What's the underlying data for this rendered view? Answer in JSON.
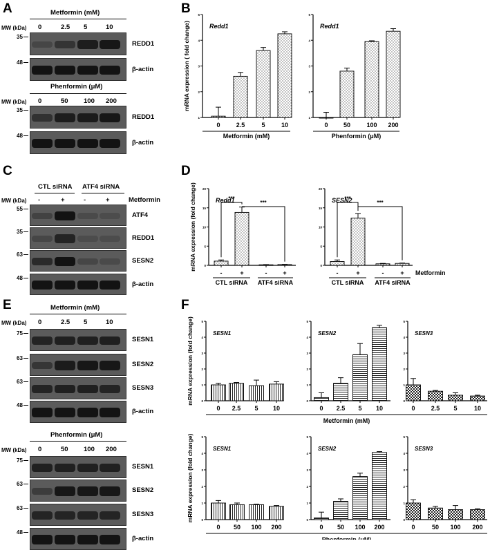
{
  "panel_labels": {
    "A": "A",
    "B": "B",
    "C": "C",
    "D": "D",
    "E": "E",
    "F": "F"
  },
  "blots": {
    "A1": {
      "header": "Metformin (mM)",
      "mw_label": "MW (kDa)",
      "lanes": [
        "0",
        "2.5",
        "5",
        "10"
      ],
      "rows": [
        {
          "mw": "35",
          "label": "REDD1",
          "levels": [
            0.15,
            0.45,
            0.8,
            0.9
          ]
        },
        {
          "mw": "48",
          "label": "β-actin",
          "levels": [
            0.95,
            0.95,
            0.95,
            0.95
          ]
        }
      ]
    },
    "A2": {
      "header": "Phenformin (μM)",
      "mw_label": "MW (kDa)",
      "lanes": [
        "0",
        "50",
        "100",
        "200"
      ],
      "rows": [
        {
          "mw": "35",
          "label": "REDD1",
          "levels": [
            0.5,
            0.8,
            0.85,
            0.9
          ]
        },
        {
          "mw": "48",
          "label": "β-actin",
          "levels": [
            0.95,
            0.95,
            0.95,
            0.95
          ]
        }
      ]
    },
    "C": {
      "headers": [
        "CTL siRNA",
        "ATF4 siRNA"
      ],
      "mw_label": "MW (kDa)",
      "lanes": [
        "-",
        "+",
        "-",
        "+"
      ],
      "treatment": "Metformin",
      "rows": [
        {
          "mw": "55",
          "label": "ATF4",
          "levels": [
            0.2,
            0.95,
            0.1,
            0.05
          ]
        },
        {
          "mw": "35",
          "label": "REDD1",
          "levels": [
            0.15,
            0.7,
            0.05,
            0.05
          ]
        },
        {
          "mw": "63",
          "label": "SESN2",
          "levels": [
            0.6,
            0.95,
            0.15,
            0.1
          ]
        },
        {
          "mw": "48",
          "label": "β-actin",
          "levels": [
            0.95,
            0.95,
            0.95,
            0.95
          ]
        }
      ]
    },
    "E1": {
      "header": "Metformin (mM)",
      "mw_label": "MW (kDa)",
      "lanes": [
        "0",
        "2.5",
        "5",
        "10"
      ],
      "rows": [
        {
          "mw": "75",
          "label": "SESN1",
          "levels": [
            0.7,
            0.75,
            0.75,
            0.75
          ]
        },
        {
          "mw": "63",
          "label": "SESN2",
          "levels": [
            0.4,
            0.85,
            0.9,
            0.9
          ]
        },
        {
          "mw": "63",
          "label": "SESN3",
          "levels": [
            0.7,
            0.75,
            0.75,
            0.7
          ]
        },
        {
          "mw": "48",
          "label": "β-actin",
          "levels": [
            0.95,
            0.95,
            0.95,
            0.95
          ]
        }
      ]
    },
    "E2": {
      "header": "Phenformin (μM)",
      "mw_label": "MW (kDa)",
      "lanes": [
        "0",
        "50",
        "100",
        "200"
      ],
      "rows": [
        {
          "mw": "75",
          "label": "SESN1",
          "levels": [
            0.75,
            0.75,
            0.75,
            0.75
          ]
        },
        {
          "mw": "63",
          "label": "SESN2",
          "levels": [
            0.3,
            0.9,
            0.9,
            0.9
          ]
        },
        {
          "mw": "63",
          "label": "SESN3",
          "levels": [
            0.7,
            0.7,
            0.7,
            0.7
          ]
        },
        {
          "mw": "48",
          "label": "β-actin",
          "levels": [
            0.95,
            0.95,
            0.95,
            0.95
          ]
        }
      ]
    }
  },
  "chart_data": [
    {
      "id": "B1",
      "type": "bar",
      "gene": "Redd1",
      "categories": [
        "0",
        "2.5",
        "5",
        "10"
      ],
      "values": [
        1.05,
        2.6,
        3.6,
        4.25
      ],
      "errors": [
        0.35,
        0.15,
        0.12,
        0.08
      ],
      "ylim": [
        1,
        5
      ],
      "yticks": [
        "1",
        "2",
        "3",
        "4",
        "5"
      ],
      "ylabel": "mRNA expression ( fold change)",
      "xlabel": "Metformin (mM)",
      "pattern": "dots"
    },
    {
      "id": "B2",
      "type": "bar",
      "gene": "Redd1",
      "categories": [
        "0",
        "50",
        "100",
        "200"
      ],
      "values": [
        1.0,
        2.8,
        3.95,
        4.35
      ],
      "errors": [
        0.2,
        0.12,
        0.03,
        0.1
      ],
      "ylim": [
        1,
        5
      ],
      "yticks": [
        "1",
        "2",
        "3",
        "4",
        "5"
      ],
      "ylabel": "",
      "xlabel": "Phenformin (μM)",
      "pattern": "dots"
    },
    {
      "id": "D1",
      "type": "bar",
      "gene": "Redd1",
      "categories": [
        "-",
        "+",
        "-",
        "+"
      ],
      "groups": [
        "CTL siRNA",
        "ATF4 siRNA"
      ],
      "values": [
        1.1,
        13.8,
        0.15,
        0.2
      ],
      "errors": [
        0.3,
        1.4,
        0.05,
        0.05
      ],
      "ylim": [
        0,
        20
      ],
      "yticks": [
        "0",
        "5",
        "10",
        "15",
        "20"
      ],
      "ylabel": "mRNA expression (fold change)",
      "treatment": "Metformin",
      "significance": "***",
      "pattern": "dots"
    },
    {
      "id": "D2",
      "type": "bar",
      "gene": "SESN2",
      "categories": [
        "-",
        "+",
        "-",
        "+"
      ],
      "groups": [
        "CTL siRNA",
        "ATF4 siRNA"
      ],
      "values": [
        1.0,
        12.3,
        0.4,
        0.5
      ],
      "errors": [
        0.4,
        1.2,
        0.1,
        0.1
      ],
      "ylim": [
        0,
        20
      ],
      "yticks": [
        "0",
        "5",
        "10",
        "15",
        "20"
      ],
      "ylabel": "",
      "treatment": "Metformin",
      "significance": "***",
      "pattern": "dots"
    },
    {
      "id": "F1",
      "type": "bar",
      "gene": "SESN1",
      "categories": [
        "0",
        "2.5",
        "5",
        "10"
      ],
      "values": [
        1.0,
        1.1,
        0.95,
        1.05
      ],
      "errors": [
        0.1,
        0.05,
        0.35,
        0.15
      ],
      "ylim": [
        0,
        5
      ],
      "yticks": [
        "0",
        "1",
        "2",
        "3",
        "4",
        "5"
      ],
      "ylabel": "mRNA expression (fold change)",
      "pattern": "vlines"
    },
    {
      "id": "F2",
      "type": "bar",
      "gene": "SESN2",
      "categories": [
        "0",
        "2.5",
        "5",
        "10"
      ],
      "values": [
        0.2,
        1.1,
        2.9,
        4.6
      ],
      "errors": [
        0.3,
        0.35,
        0.7,
        0.15
      ],
      "ylim": [
        0,
        5
      ],
      "yticks": [
        "0",
        "1",
        "2",
        "3",
        "4",
        "5"
      ],
      "ylabel": "",
      "xlabel": "Metformin (mM)",
      "pattern": "hlines"
    },
    {
      "id": "F3",
      "type": "bar",
      "gene": "SESN3",
      "categories": [
        "0",
        "2.5",
        "5",
        "10"
      ],
      "values": [
        1.0,
        0.6,
        0.35,
        0.3
      ],
      "errors": [
        0.4,
        0.05,
        0.15,
        0.05
      ],
      "ylim": [
        0,
        5
      ],
      "yticks": [
        "0",
        "1",
        "2",
        "3",
        "4",
        "5"
      ],
      "ylabel": "",
      "pattern": "checker"
    },
    {
      "id": "F4",
      "type": "bar",
      "gene": "SESN1",
      "categories": [
        "0",
        "50",
        "100",
        "200"
      ],
      "values": [
        1.0,
        0.9,
        0.9,
        0.8
      ],
      "errors": [
        0.15,
        0.1,
        0.03,
        0.05
      ],
      "ylim": [
        0,
        5
      ],
      "yticks": [
        "0",
        "1",
        "2",
        "3",
        "4",
        "5"
      ],
      "ylabel": "mRNA expression (fold change)",
      "pattern": "vlines"
    },
    {
      "id": "F5",
      "type": "bar",
      "gene": "SESN2",
      "categories": [
        "0",
        "50",
        "100",
        "200"
      ],
      "values": [
        0.1,
        1.1,
        2.6,
        4.05
      ],
      "errors": [
        0.35,
        0.15,
        0.2,
        0.05
      ],
      "ylim": [
        0,
        5
      ],
      "yticks": [
        "0",
        "1",
        "2",
        "3",
        "4",
        "5"
      ],
      "ylabel": "",
      "xlabel": "Phenformin (μM)",
      "pattern": "hlines"
    },
    {
      "id": "F6",
      "type": "bar",
      "gene": "SESN3",
      "categories": [
        "0",
        "50",
        "100",
        "200"
      ],
      "values": [
        1.0,
        0.7,
        0.6,
        0.6
      ],
      "errors": [
        0.2,
        0.1,
        0.25,
        0.05
      ],
      "ylim": [
        0,
        5
      ],
      "yticks": [
        "0",
        "1",
        "2",
        "3",
        "4",
        "5"
      ],
      "ylabel": "",
      "pattern": "checker"
    }
  ]
}
